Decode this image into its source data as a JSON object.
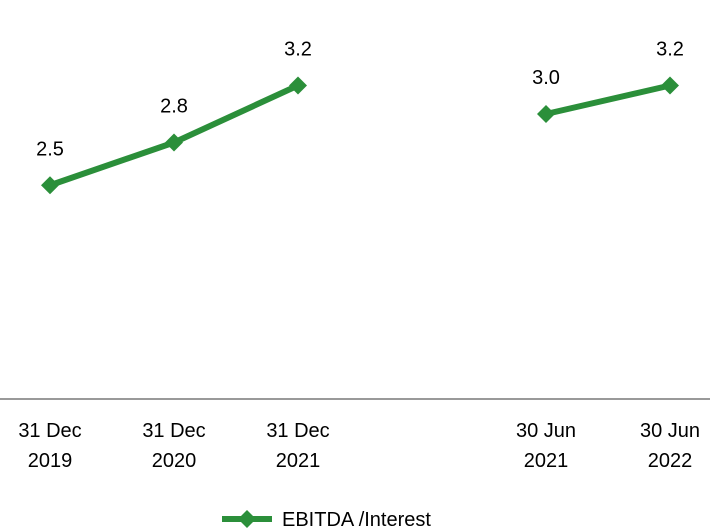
{
  "chart_data": {
    "type": "line",
    "categories": [
      "31 Dec 2019",
      "31 Dec 2020",
      "31 Dec 2021",
      null,
      "30 Jun 2021",
      "30 Jun 2022"
    ],
    "series": [
      {
        "name": "EBITDA /Interest",
        "color": "#2b8f3a",
        "values": [
          2.5,
          2.8,
          3.2,
          null,
          3.0,
          3.2
        ],
        "value_labels": [
          "2.5",
          "2.8",
          "3.2",
          null,
          "3.0",
          "3.2"
        ]
      }
    ],
    "ylim": [
      1.0,
      3.8
    ],
    "legend": "bottom"
  }
}
